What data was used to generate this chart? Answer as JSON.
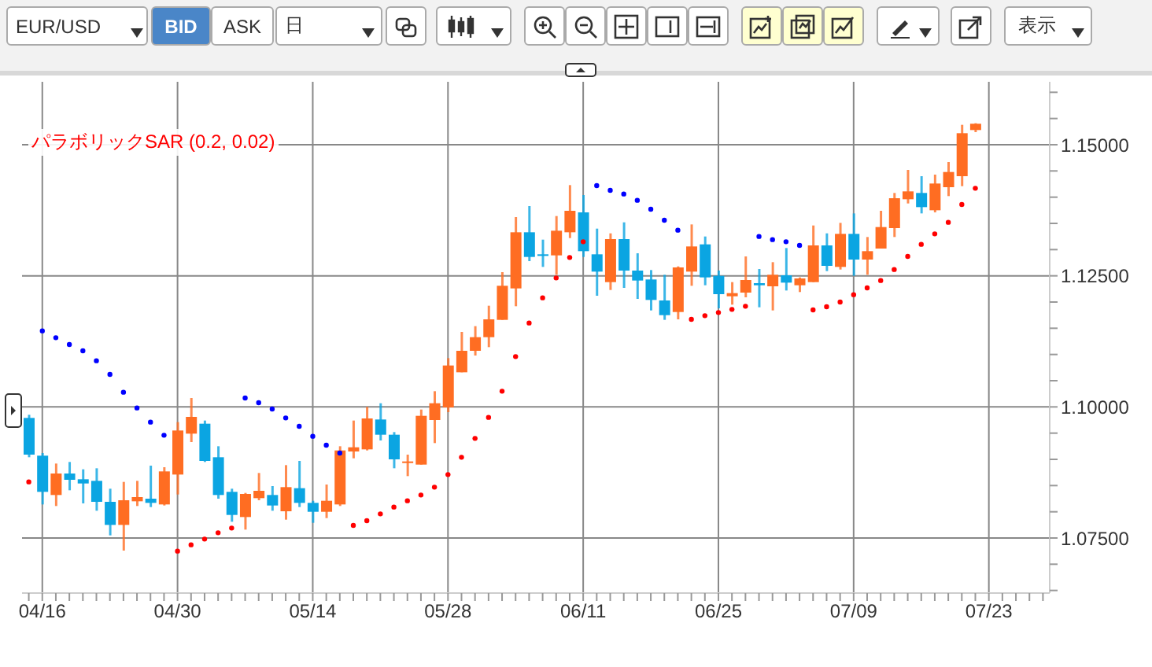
{
  "chart_data": {
    "type": "candlestick",
    "annotations": [
      "EUR/USD",
      "BID",
      "ASK",
      "日",
      "表示"
    ],
    "categories": [
      null,
      "04/16",
      null,
      null,
      null,
      null,
      null,
      null,
      null,
      null,
      null,
      "04/30",
      null,
      null,
      null,
      null,
      null,
      null,
      null,
      null,
      null,
      "05/14",
      null,
      null,
      null,
      null,
      null,
      null,
      null,
      null,
      null,
      "05/28",
      null,
      null,
      null,
      null,
      null,
      null,
      null,
      null,
      null,
      "06/11",
      null,
      null,
      null,
      null,
      null,
      null,
      null,
      null,
      null,
      "06/25",
      null,
      null,
      null,
      null,
      null,
      null,
      null,
      null,
      null,
      "07/09",
      null,
      null,
      null,
      null,
      null,
      null,
      null,
      null,
      null,
      "07/23",
      null,
      null,
      null,
      null
    ],
    "ohlc": [
      [
        1.0979,
        1.0985,
        1.0904,
        1.0909
      ],
      [
        1.0907,
        1.0912,
        1.0814,
        1.0838
      ],
      [
        1.0832,
        1.0892,
        1.0811,
        1.0873
      ],
      [
        1.0873,
        1.0895,
        1.0841,
        1.0861
      ],
      [
        1.0862,
        1.0881,
        1.0816,
        1.0854
      ],
      [
        1.0859,
        1.0883,
        1.0802,
        1.0819
      ],
      [
        1.0819,
        1.0844,
        1.0755,
        1.0775
      ],
      [
        1.0775,
        1.0857,
        1.0726,
        1.0822
      ],
      [
        1.082,
        1.0859,
        1.0811,
        1.0828
      ],
      [
        1.0825,
        1.0888,
        1.0809,
        1.0817
      ],
      [
        1.0814,
        1.0885,
        1.0812,
        1.0877
      ],
      [
        1.0871,
        1.0971,
        1.0833,
        1.0955
      ],
      [
        1.0949,
        1.1017,
        1.0933,
        1.0981
      ],
      [
        1.0968,
        1.0974,
        1.0895,
        1.0897
      ],
      [
        1.0904,
        1.0925,
        1.0825,
        1.0832
      ],
      [
        1.0838,
        1.0844,
        1.0781,
        1.0794
      ],
      [
        1.079,
        1.0836,
        1.0766,
        1.0834
      ],
      [
        1.0826,
        1.0874,
        1.0822,
        1.084
      ],
      [
        1.0832,
        1.0849,
        1.0802,
        1.0812
      ],
      [
        1.0801,
        1.0889,
        1.0785,
        1.0847
      ],
      [
        1.0845,
        1.0897,
        1.0809,
        1.0817
      ],
      [
        1.0817,
        1.0821,
        1.0779,
        1.08
      ],
      [
        1.08,
        1.0852,
        1.0788,
        1.0821
      ],
      [
        1.0814,
        1.0925,
        1.0811,
        1.0917
      ],
      [
        1.0915,
        1.0974,
        1.0902,
        1.0923
      ],
      [
        1.0919,
        1.1,
        1.0917,
        1.0978
      ],
      [
        1.0976,
        1.1007,
        1.0936,
        1.0947
      ],
      [
        1.0947,
        1.0952,
        1.0883,
        1.09
      ],
      [
        1.0894,
        1.0909,
        1.0868,
        1.0896
      ],
      [
        1.089,
        1.0995,
        1.089,
        1.0983
      ],
      [
        1.0975,
        1.103,
        1.0931,
        1.1007
      ],
      [
        1.0999,
        1.1093,
        1.099,
        1.1079
      ],
      [
        1.1066,
        1.1143,
        1.1066,
        1.1107
      ],
      [
        1.1107,
        1.1154,
        1.1098,
        1.1133
      ],
      [
        1.1133,
        1.1193,
        1.1114,
        1.1167
      ],
      [
        1.1166,
        1.1257,
        1.1166,
        1.1231
      ],
      [
        1.1226,
        1.1362,
        1.1192,
        1.1333
      ],
      [
        1.1333,
        1.1383,
        1.1278,
        1.1286
      ],
      [
        1.1291,
        1.1319,
        1.1267,
        1.1289
      ],
      [
        1.1289,
        1.1364,
        1.1252,
        1.1336
      ],
      [
        1.1333,
        1.1423,
        1.1322,
        1.1374
      ],
      [
        1.1371,
        1.1404,
        1.1286,
        1.1297
      ],
      [
        1.1291,
        1.134,
        1.1212,
        1.1258
      ],
      [
        1.1238,
        1.1331,
        1.1223,
        1.132
      ],
      [
        1.132,
        1.1352,
        1.1227,
        1.126
      ],
      [
        1.126,
        1.1293,
        1.1206,
        1.1241
      ],
      [
        1.1243,
        1.1261,
        1.1184,
        1.1204
      ],
      [
        1.1203,
        1.1252,
        1.1166,
        1.1175
      ],
      [
        1.1181,
        1.1268,
        1.1167,
        1.1266
      ],
      [
        1.1258,
        1.1348,
        1.1231,
        1.1306
      ],
      [
        1.131,
        1.1325,
        1.1232,
        1.1247
      ],
      [
        1.125,
        1.126,
        1.1188,
        1.1215
      ],
      [
        1.1211,
        1.1238,
        1.1195,
        1.1217
      ],
      [
        1.1218,
        1.1287,
        1.1209,
        1.1242
      ],
      [
        1.1236,
        1.1263,
        1.119,
        1.1232
      ],
      [
        1.123,
        1.1276,
        1.1184,
        1.1252
      ],
      [
        1.1251,
        1.1303,
        1.1222,
        1.1237
      ],
      [
        1.1232,
        1.1247,
        1.1219,
        1.1245
      ],
      [
        1.1238,
        1.1346,
        1.1238,
        1.1308
      ],
      [
        1.1308,
        1.1331,
        1.1259,
        1.1269
      ],
      [
        1.1267,
        1.1351,
        1.1262,
        1.133
      ],
      [
        1.133,
        1.1369,
        1.125,
        1.1281
      ],
      [
        1.1281,
        1.1324,
        1.1252,
        1.1297
      ],
      [
        1.1302,
        1.1374,
        1.1302,
        1.1343
      ],
      [
        1.1341,
        1.1408,
        1.1324,
        1.1398
      ],
      [
        1.1396,
        1.1452,
        1.1388,
        1.1411
      ],
      [
        1.1408,
        1.144,
        1.1369,
        1.1381
      ],
      [
        1.1375,
        1.1443,
        1.1371,
        1.1426
      ],
      [
        1.1419,
        1.1467,
        1.1402,
        1.1448
      ],
      [
        1.144,
        1.1538,
        1.1421,
        1.1522
      ],
      [
        1.1528,
        1.1541,
        1.1524,
        1.154
      ],
      null,
      null,
      null,
      null,
      null
    ],
    "colors": [
      "#0ba5e2",
      "#0ba5e2",
      "#ff6d22",
      "#0ba5e2",
      "#0ba5e2",
      "#0ba5e2",
      "#0ba5e2",
      "#ff6d22",
      "#ff6d22",
      "#0ba5e2",
      "#ff6d22",
      "#ff6d22",
      "#ff6d22",
      "#0ba5e2",
      "#0ba5e2",
      "#0ba5e2",
      "#ff6d22",
      "#ff6d22",
      "#0ba5e2",
      "#ff6d22",
      "#0ba5e2",
      "#0ba5e2",
      "#ff6d22",
      "#ff6d22",
      "#ff6d22",
      "#ff6d22",
      "#0ba5e2",
      "#0ba5e2",
      "#ff6d22",
      "#ff6d22",
      "#ff6d22",
      "#ff6d22",
      "#ff6d22",
      "#ff6d22",
      "#ff6d22",
      "#ff6d22",
      "#ff6d22",
      "#0ba5e2",
      "#0ba5e2",
      "#ff6d22",
      "#ff6d22",
      "#0ba5e2",
      "#0ba5e2",
      "#ff6d22",
      "#0ba5e2",
      "#0ba5e2",
      "#0ba5e2",
      "#0ba5e2",
      "#ff6d22",
      "#ff6d22",
      "#0ba5e2",
      "#0ba5e2",
      "#ff6d22",
      "#ff6d22",
      "#0ba5e2",
      "#ff6d22",
      "#0ba5e2",
      "#ff6d22",
      "#ff6d22",
      "#0ba5e2",
      "#ff6d22",
      "#0ba5e2",
      "#ff6d22",
      "#ff6d22",
      "#ff6d22",
      "#ff6d22",
      "#0ba5e2",
      "#ff6d22",
      "#ff6d22",
      "#ff6d22",
      "#ff6d22",
      null,
      null,
      null,
      null,
      null
    ],
    "series": [
      {
        "name": "パラボリックSAR (0.2, 0.02)",
        "type": "scatter",
        "color": "#ff0000",
        "values": [
          1.0857,
          1.1145,
          1.1132,
          1.1119,
          1.1107,
          1.1088,
          1.1062,
          1.1028,
          1.0998,
          1.0971,
          1.0946,
          1.0725,
          1.0737,
          1.0748,
          1.076,
          1.0769,
          1.1017,
          1.1008,
          1.0996,
          1.0979,
          1.0963,
          1.0944,
          1.0927,
          1.0912,
          1.0774,
          1.0783,
          1.0796,
          1.0809,
          1.0821,
          1.0832,
          1.0847,
          1.0871,
          1.0904,
          1.094,
          1.098,
          1.103,
          1.1096,
          1.116,
          1.1208,
          1.1246,
          1.1285,
          1.1315,
          1.1422,
          1.1413,
          1.1406,
          1.1394,
          1.1377,
          1.1356,
          1.1337,
          1.1167,
          1.1174,
          1.118,
          1.1186,
          1.1192,
          1.1325,
          1.1319,
          1.1315,
          1.1308,
          1.1185,
          1.1191,
          1.12,
          1.1214,
          1.1227,
          1.1241,
          1.1262,
          1.1287,
          1.131,
          1.133,
          1.1352,
          1.1386,
          1.1417,
          null,
          null,
          null,
          null,
          null
        ],
        "colors": [
          "#ff0000",
          "#0000ff",
          "#0000ff",
          "#0000ff",
          "#0000ff",
          "#0000ff",
          "#0000ff",
          "#0000ff",
          "#0000ff",
          "#0000ff",
          "#0000ff",
          "#ff0000",
          "#ff0000",
          "#ff0000",
          "#ff0000",
          "#ff0000",
          "#0000ff",
          "#0000ff",
          "#0000ff",
          "#0000ff",
          "#0000ff",
          "#0000ff",
          "#0000ff",
          "#0000ff",
          "#ff0000",
          "#ff0000",
          "#ff0000",
          "#ff0000",
          "#ff0000",
          "#ff0000",
          "#ff0000",
          "#ff0000",
          "#ff0000",
          "#ff0000",
          "#ff0000",
          "#ff0000",
          "#ff0000",
          "#ff0000",
          "#ff0000",
          "#ff0000",
          "#ff0000",
          "#ff0000",
          "#0000ff",
          "#0000ff",
          "#0000ff",
          "#0000ff",
          "#0000ff",
          "#0000ff",
          "#0000ff",
          "#ff0000",
          "#ff0000",
          "#ff0000",
          "#ff0000",
          "#ff0000",
          "#0000ff",
          "#0000ff",
          "#0000ff",
          "#0000ff",
          "#ff0000",
          "#ff0000",
          "#ff0000",
          "#ff0000",
          "#ff0000",
          "#ff0000",
          "#ff0000",
          "#ff0000",
          "#ff0000",
          "#ff0000",
          "#ff0000",
          "#ff0000",
          "#ff0000",
          null,
          null,
          null,
          null,
          null
        ]
      }
    ],
    "ylim": [
      1.0645,
      1.162
    ],
    "yticks": [
      {
        "value": 1.065,
        "label": null
      },
      {
        "value": 1.07,
        "label": null
      },
      {
        "value": 1.075,
        "label": "1.07500"
      },
      {
        "value": 1.08,
        "label": null
      },
      {
        "value": 1.085,
        "label": null
      },
      {
        "value": 1.09,
        "label": null
      },
      {
        "value": 1.095,
        "label": null
      },
      {
        "value": 1.1,
        "label": "1.10000"
      },
      {
        "value": 1.105,
        "label": null
      },
      {
        "value": 1.11,
        "label": null
      },
      {
        "value": 1.115,
        "label": null
      },
      {
        "value": 1.12,
        "label": null
      },
      {
        "value": 1.125,
        "label": "1.12500"
      },
      {
        "value": 1.13,
        "label": null
      },
      {
        "value": 1.135,
        "label": null
      },
      {
        "value": 1.14,
        "label": null
      },
      {
        "value": 1.145,
        "label": null
      },
      {
        "value": 1.15,
        "label": "1.15000"
      },
      {
        "value": 1.155,
        "label": null
      },
      {
        "value": 1.16,
        "label": null
      }
    ],
    "grid": true,
    "legend": "top left",
    "marker": "circle"
  }
}
